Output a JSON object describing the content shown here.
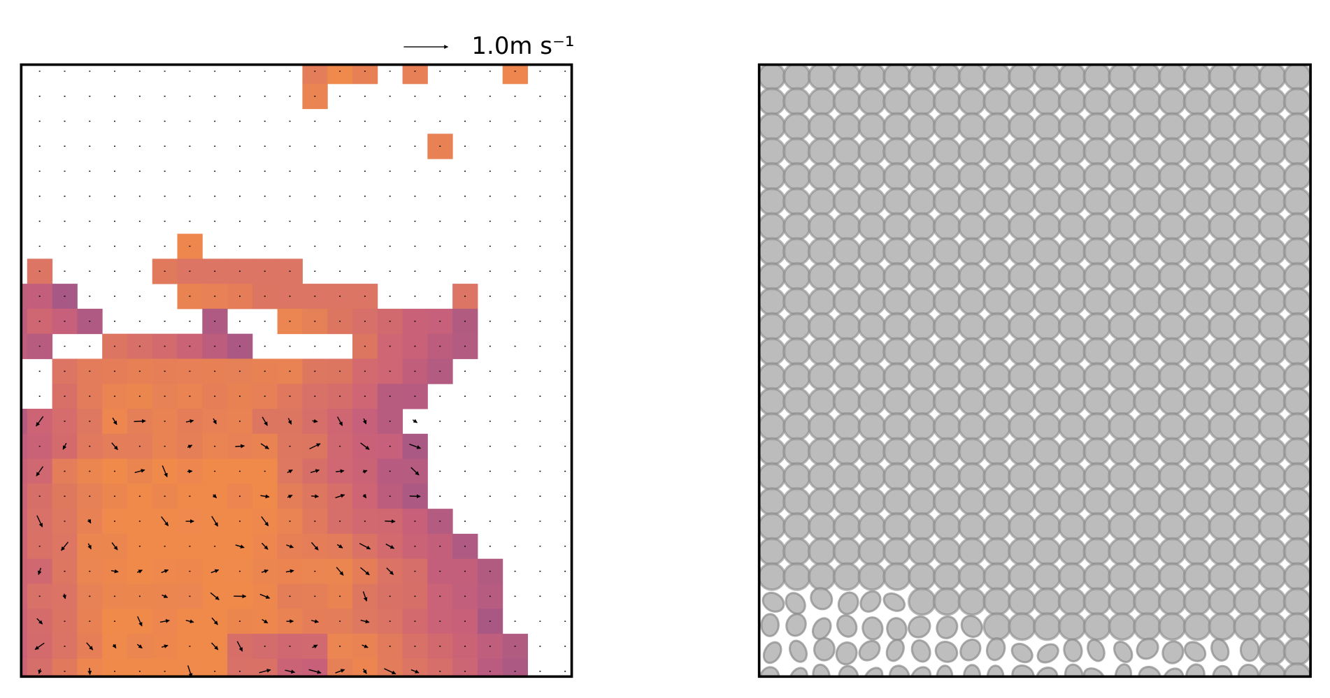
{
  "quiver_key": {
    "label": "1.0m s⁻¹"
  }
}
